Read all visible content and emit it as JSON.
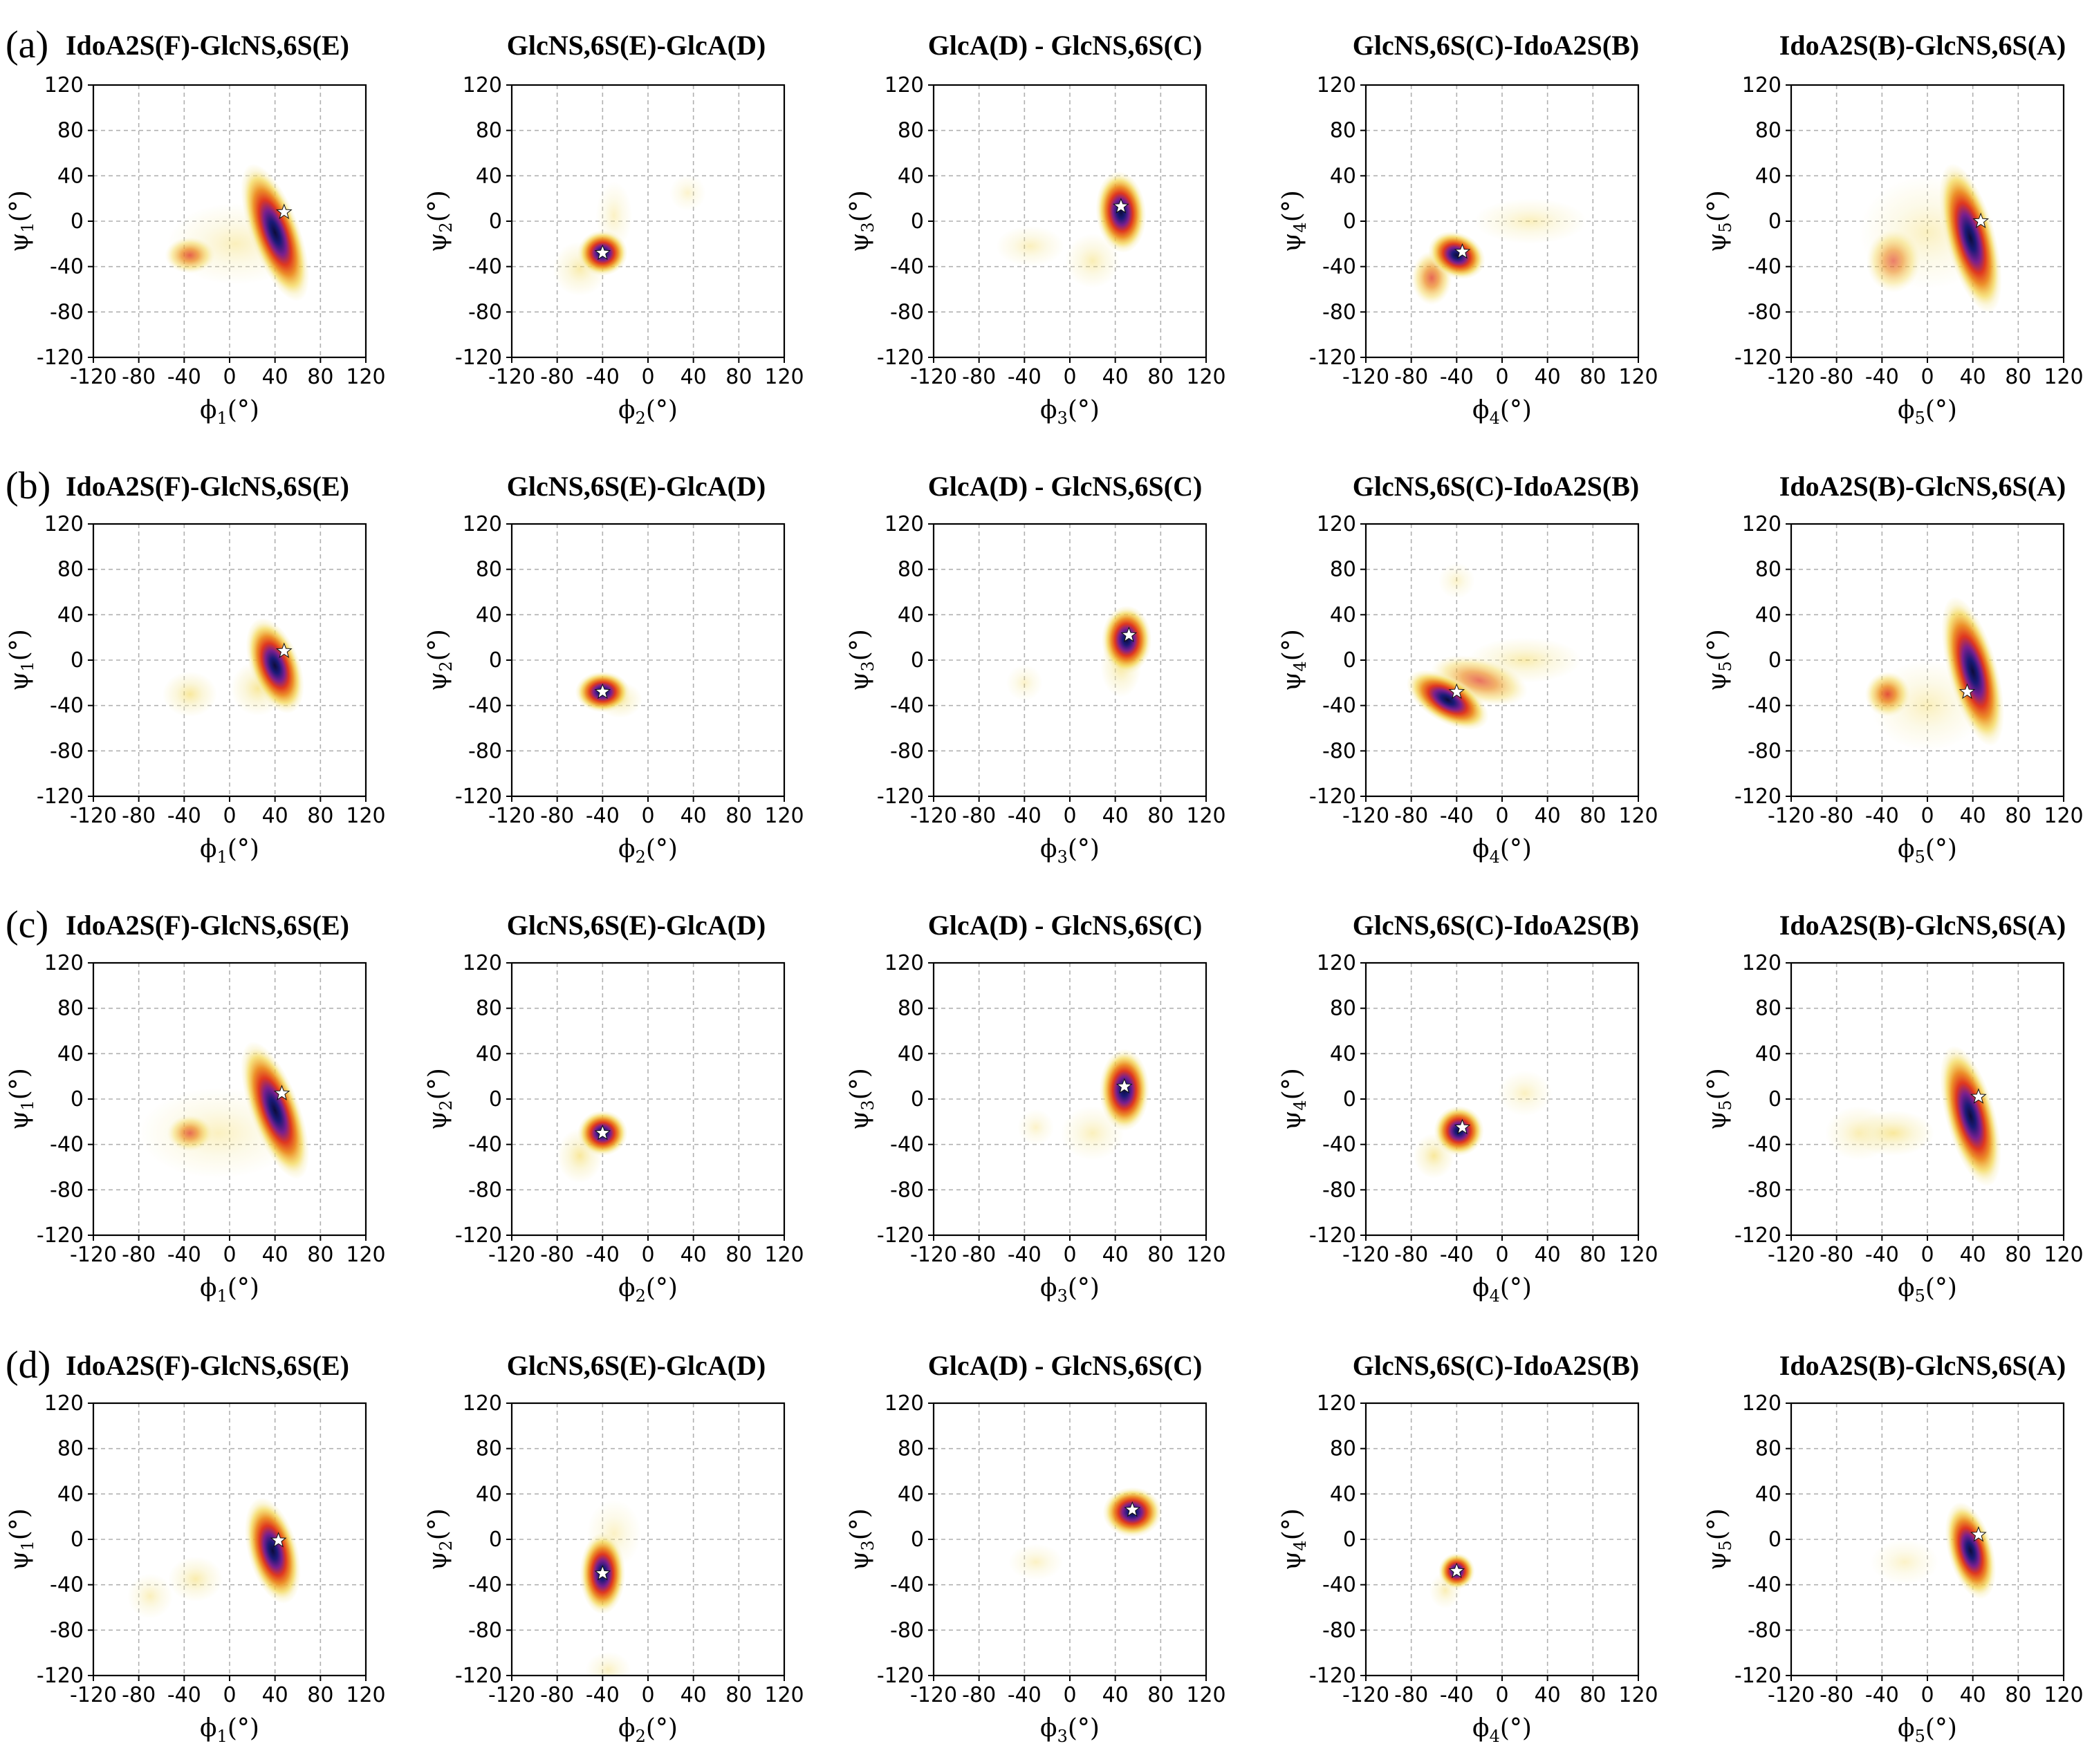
{
  "panels": [
    {
      "label": "(a)",
      "row": 0
    },
    {
      "label": "(b)",
      "row": 1
    },
    {
      "label": "(c)",
      "row": 2
    },
    {
      "label": "(d)",
      "row": 3
    }
  ],
  "titles": [
    "IdoA2S(F)-GlcNS,6S(E)",
    "GlcNS,6S(E)-GlcA(D)",
    "GlcA(D) - GlcNS,6S(C)",
    "GlcNS,6S(C)-IdoA2S(B)",
    "IdoA2S(B)-GlcNS,6S(A)"
  ],
  "axis_ticks": [
    "-120",
    "-80",
    "-40",
    "0",
    "40",
    "80",
    "120"
  ],
  "axis_tick_values": [
    -120,
    -80,
    -40,
    0,
    40,
    80,
    120
  ],
  "xlabel_prefix": "ϕ",
  "ylabel_prefix": "ψ",
  "label_unit": "(°)",
  "colors": {
    "pale": "#f6ecb0",
    "yellow": "#f3d54a",
    "orange": "#ec8a1e",
    "red": "#e0381f",
    "purple": "#7a1f8e",
    "navy": "#1a1a78",
    "core": "#0c0c3a",
    "grid": "#b0b0b0"
  },
  "chart_data": [
    {
      "type": "heatmap",
      "panel": "(a)",
      "title": "IdoA2S(F)-GlcNS,6S(E)",
      "xlabel": "ϕ1(°)",
      "ylabel": "ψ1(°)",
      "xlim": [
        -120,
        120
      ],
      "ylim": [
        -120,
        120
      ],
      "minimum": [
        48,
        8
      ],
      "blobs": [
        {
          "x": 40,
          "y": -10,
          "sx": 11,
          "sy": 32,
          "rot": 20,
          "w": 1.0
        },
        {
          "x": -35,
          "y": -30,
          "sx": 11,
          "sy": 8,
          "rot": 0,
          "w": 0.55
        },
        {
          "x": 5,
          "y": -20,
          "sx": 30,
          "sy": 18,
          "rot": 0,
          "w": 0.08
        }
      ]
    },
    {
      "type": "heatmap",
      "panel": "(a)",
      "title": "GlcNS,6S(E)-GlcA(D)",
      "xlabel": "ϕ2(°)",
      "ylabel": "ψ2(°)",
      "xlim": [
        -120,
        120
      ],
      "ylim": [
        -120,
        120
      ],
      "minimum": [
        -40,
        -28
      ],
      "blobs": [
        {
          "x": -40,
          "y": -28,
          "sx": 11,
          "sy": 10,
          "rot": 0,
          "w": 1.0
        },
        {
          "x": -60,
          "y": -42,
          "sx": 12,
          "sy": 12,
          "rot": 0,
          "w": 0.12
        },
        {
          "x": -30,
          "y": 5,
          "sx": 8,
          "sy": 15,
          "rot": 0,
          "w": 0.06
        },
        {
          "x": 35,
          "y": 25,
          "sx": 8,
          "sy": 8,
          "rot": 0,
          "w": 0.04
        }
      ]
    },
    {
      "type": "heatmap",
      "panel": "(a)",
      "title": "GlcA(D) - GlcNS,6S(C)",
      "xlabel": "ϕ3(°)",
      "ylabel": "ψ3(°)",
      "xlim": [
        -120,
        120
      ],
      "ylim": [
        -120,
        120
      ],
      "minimum": [
        45,
        13
      ],
      "blobs": [
        {
          "x": 45,
          "y": 8,
          "sx": 11,
          "sy": 18,
          "rot": 5,
          "w": 1.0
        },
        {
          "x": 20,
          "y": -35,
          "sx": 12,
          "sy": 12,
          "rot": 0,
          "w": 0.1
        },
        {
          "x": -35,
          "y": -22,
          "sx": 15,
          "sy": 9,
          "rot": 0,
          "w": 0.08
        }
      ]
    },
    {
      "type": "heatmap",
      "panel": "(a)",
      "title": "GlcNS,6S(C)-IdoA2S(B)",
      "xlabel": "ϕ4(°)",
      "ylabel": "ψ4(°)",
      "xlim": [
        -120,
        120
      ],
      "ylim": [
        -120,
        120
      ],
      "minimum": [
        -35,
        -27
      ],
      "blobs": [
        {
          "x": -40,
          "y": -30,
          "sx": 13,
          "sy": 10,
          "rot": -25,
          "w": 1.0
        },
        {
          "x": -62,
          "y": -50,
          "sx": 9,
          "sy": 12,
          "rot": 0,
          "w": 0.5
        },
        {
          "x": 25,
          "y": 0,
          "sx": 25,
          "sy": 10,
          "rot": 0,
          "w": 0.08
        }
      ]
    },
    {
      "type": "heatmap",
      "panel": "(a)",
      "title": "IdoA2S(B)-GlcNS,6S(A)",
      "xlabel": "ϕ5(°)",
      "ylabel": "ψ5(°)",
      "xlim": [
        -120,
        120
      ],
      "ylim": [
        -120,
        120
      ],
      "minimum": [
        47,
        0
      ],
      "blobs": [
        {
          "x": 38,
          "y": -15,
          "sx": 11,
          "sy": 34,
          "rot": 15,
          "w": 1.0
        },
        {
          "x": -30,
          "y": -35,
          "sx": 12,
          "sy": 14,
          "rot": 0,
          "w": 0.3
        },
        {
          "x": 0,
          "y": -10,
          "sx": 30,
          "sy": 25,
          "rot": 0,
          "w": 0.07
        }
      ]
    },
    {
      "type": "heatmap",
      "panel": "(b)",
      "title": "IdoA2S(F)-GlcNS,6S(E)",
      "xlabel": "ϕ1(°)",
      "ylabel": "ψ1(°)",
      "xlim": [
        -120,
        120
      ],
      "ylim": [
        -120,
        120
      ],
      "minimum": [
        48,
        8
      ],
      "blobs": [
        {
          "x": 40,
          "y": -5,
          "sx": 11,
          "sy": 22,
          "rot": 20,
          "w": 1.0
        },
        {
          "x": -35,
          "y": -30,
          "sx": 12,
          "sy": 10,
          "rot": 0,
          "w": 0.2
        },
        {
          "x": 25,
          "y": -25,
          "sx": 12,
          "sy": 12,
          "rot": 0,
          "w": 0.2
        }
      ]
    },
    {
      "type": "heatmap",
      "panel": "(b)",
      "title": "GlcNS,6S(E)-GlcA(D)",
      "xlabel": "ϕ2(°)",
      "ylabel": "ψ2(°)",
      "xlim": [
        -120,
        120
      ],
      "ylim": [
        -120,
        120
      ],
      "minimum": [
        -40,
        -28
      ],
      "blobs": [
        {
          "x": -40,
          "y": -28,
          "sx": 12,
          "sy": 9,
          "rot": 0,
          "w": 1.0
        },
        {
          "x": -25,
          "y": -35,
          "sx": 10,
          "sy": 8,
          "rot": 0,
          "w": 0.15
        }
      ]
    },
    {
      "type": "heatmap",
      "panel": "(b)",
      "title": "GlcA(D) - GlcNS,6S(C)",
      "xlabel": "ϕ3(°)",
      "ylabel": "ψ3(°)",
      "xlim": [
        -120,
        120
      ],
      "ylim": [
        -120,
        120
      ],
      "minimum": [
        52,
        22
      ],
      "blobs": [
        {
          "x": 50,
          "y": 18,
          "sx": 11,
          "sy": 15,
          "rot": 0,
          "w": 1.0
        },
        {
          "x": 45,
          "y": -5,
          "sx": 9,
          "sy": 14,
          "rot": 0,
          "w": 0.25
        },
        {
          "x": -40,
          "y": -20,
          "sx": 8,
          "sy": 8,
          "rot": 0,
          "w": 0.05
        }
      ]
    },
    {
      "type": "heatmap",
      "panel": "(b)",
      "title": "GlcNS,6S(C)-IdoA2S(B)",
      "xlabel": "ϕ4(°)",
      "ylabel": "ψ4(°)",
      "xlim": [
        -120,
        120
      ],
      "ylim": [
        -120,
        120
      ],
      "minimum": [
        -40,
        -28
      ],
      "blobs": [
        {
          "x": -48,
          "y": -35,
          "sx": 20,
          "sy": 10,
          "rot": -30,
          "w": 1.0
        },
        {
          "x": -20,
          "y": -18,
          "sx": 22,
          "sy": 10,
          "rot": -15,
          "w": 0.4
        },
        {
          "x": 20,
          "y": 0,
          "sx": 25,
          "sy": 10,
          "rot": 0,
          "w": 0.12
        },
        {
          "x": -40,
          "y": 70,
          "sx": 8,
          "sy": 8,
          "rot": 0,
          "w": 0.05
        }
      ]
    },
    {
      "type": "heatmap",
      "panel": "(b)",
      "title": "IdoA2S(B)-GlcNS,6S(A)",
      "xlabel": "ϕ5(°)",
      "ylabel": "ψ5(°)",
      "xlim": [
        -120,
        120
      ],
      "ylim": [
        -120,
        120
      ],
      "minimum": [
        35,
        -28
      ],
      "blobs": [
        {
          "x": 40,
          "y": -10,
          "sx": 11,
          "sy": 34,
          "rot": 15,
          "w": 1.0
        },
        {
          "x": -35,
          "y": -30,
          "sx": 10,
          "sy": 10,
          "rot": 0,
          "w": 0.7
        },
        {
          "x": 0,
          "y": -40,
          "sx": 25,
          "sy": 20,
          "rot": 0,
          "w": 0.08
        }
      ]
    },
    {
      "type": "heatmap",
      "panel": "(c)",
      "title": "IdoA2S(F)-GlcNS,6S(E)",
      "xlabel": "ϕ1(°)",
      "ylabel": "ψ1(°)",
      "xlim": [
        -120,
        120
      ],
      "ylim": [
        -120,
        120
      ],
      "minimum": [
        46,
        5
      ],
      "blobs": [
        {
          "x": 40,
          "y": -10,
          "sx": 11,
          "sy": 32,
          "rot": 20,
          "w": 1.0
        },
        {
          "x": -35,
          "y": -30,
          "sx": 10,
          "sy": 8,
          "rot": 0,
          "w": 0.45
        },
        {
          "x": -10,
          "y": -30,
          "sx": 35,
          "sy": 20,
          "rot": 0,
          "w": 0.07
        }
      ]
    },
    {
      "type": "heatmap",
      "panel": "(c)",
      "title": "GlcNS,6S(E)-GlcA(D)",
      "xlabel": "ϕ2(°)",
      "ylabel": "ψ2(°)",
      "xlim": [
        -120,
        120
      ],
      "ylim": [
        -120,
        120
      ],
      "minimum": [
        -40,
        -30
      ],
      "blobs": [
        {
          "x": -40,
          "y": -30,
          "sx": 11,
          "sy": 10,
          "rot": 0,
          "w": 1.0
        },
        {
          "x": -60,
          "y": -50,
          "sx": 10,
          "sy": 12,
          "rot": 0,
          "w": 0.25
        }
      ]
    },
    {
      "type": "heatmap",
      "panel": "(c)",
      "title": "GlcA(D) - GlcNS,6S(C)",
      "xlabel": "ϕ3(°)",
      "ylabel": "ψ3(°)",
      "xlim": [
        -120,
        120
      ],
      "ylim": [
        -120,
        120
      ],
      "minimum": [
        48,
        11
      ],
      "blobs": [
        {
          "x": 48,
          "y": 8,
          "sx": 11,
          "sy": 18,
          "rot": 0,
          "w": 1.0
        },
        {
          "x": 20,
          "y": -30,
          "sx": 14,
          "sy": 12,
          "rot": 0,
          "w": 0.08
        },
        {
          "x": -30,
          "y": -25,
          "sx": 8,
          "sy": 8,
          "rot": 0,
          "w": 0.05
        }
      ]
    },
    {
      "type": "heatmap",
      "panel": "(c)",
      "title": "GlcNS,6S(C)-IdoA2S(B)",
      "xlabel": "ϕ4(°)",
      "ylabel": "ψ4(°)",
      "xlim": [
        -120,
        120
      ],
      "ylim": [
        -120,
        120
      ],
      "minimum": [
        -35,
        -25
      ],
      "blobs": [
        {
          "x": -38,
          "y": -28,
          "sx": 11,
          "sy": 11,
          "rot": -20,
          "w": 1.0
        },
        {
          "x": -60,
          "y": -50,
          "sx": 9,
          "sy": 10,
          "rot": 0,
          "w": 0.25
        },
        {
          "x": 20,
          "y": 5,
          "sx": 12,
          "sy": 10,
          "rot": 0,
          "w": 0.07
        }
      ]
    },
    {
      "type": "heatmap",
      "panel": "(c)",
      "title": "IdoA2S(B)-GlcNS,6S(A)",
      "xlabel": "ϕ5(°)",
      "ylabel": "ψ5(°)",
      "xlim": [
        -120,
        120
      ],
      "ylim": [
        -120,
        120
      ],
      "minimum": [
        45,
        2
      ],
      "blobs": [
        {
          "x": 38,
          "y": -15,
          "sx": 11,
          "sy": 32,
          "rot": 15,
          "w": 1.0
        },
        {
          "x": -30,
          "y": -30,
          "sx": 18,
          "sy": 10,
          "rot": 0,
          "w": 0.2
        },
        {
          "x": -60,
          "y": -30,
          "sx": 15,
          "sy": 12,
          "rot": 0,
          "w": 0.1
        }
      ]
    },
    {
      "type": "heatmap",
      "panel": "(d)",
      "title": "IdoA2S(F)-GlcNS,6S(E)",
      "xlabel": "ϕ1(°)",
      "ylabel": "ψ1(°)",
      "xlim": [
        -120,
        120
      ],
      "ylim": [
        -120,
        120
      ],
      "minimum": [
        43,
        -1
      ],
      "blobs": [
        {
          "x": 38,
          "y": -10,
          "sx": 11,
          "sy": 24,
          "rot": 15,
          "w": 1.0
        },
        {
          "x": -30,
          "y": -35,
          "sx": 12,
          "sy": 10,
          "rot": 0,
          "w": 0.12
        },
        {
          "x": -70,
          "y": -50,
          "sx": 10,
          "sy": 10,
          "rot": 0,
          "w": 0.08
        }
      ]
    },
    {
      "type": "heatmap",
      "panel": "(d)",
      "title": "GlcNS,6S(E)-GlcA(D)",
      "xlabel": "ϕ2(°)",
      "ylabel": "ψ2(°)",
      "xlim": [
        -120,
        120
      ],
      "ylim": [
        -120,
        120
      ],
      "minimum": [
        -40,
        -30
      ],
      "blobs": [
        {
          "x": -40,
          "y": -30,
          "sx": 10,
          "sy": 18,
          "rot": 0,
          "w": 1.0
        },
        {
          "x": -35,
          "y": -115,
          "sx": 10,
          "sy": 8,
          "rot": 0,
          "w": 0.07
        },
        {
          "x": -30,
          "y": 5,
          "sx": 12,
          "sy": 15,
          "rot": 0,
          "w": 0.06
        }
      ]
    },
    {
      "type": "heatmap",
      "panel": "(d)",
      "title": "GlcA(D) - GlcNS,6S(C)",
      "xlabel": "ϕ3(°)",
      "ylabel": "ψ3(°)",
      "xlim": [
        -120,
        120
      ],
      "ylim": [
        -120,
        120
      ],
      "minimum": [
        55,
        26
      ],
      "blobs": [
        {
          "x": 55,
          "y": 24,
          "sx": 13,
          "sy": 11,
          "rot": 0,
          "w": 1.0
        },
        {
          "x": -30,
          "y": -20,
          "sx": 12,
          "sy": 8,
          "rot": 0,
          "w": 0.06
        }
      ]
    },
    {
      "type": "heatmap",
      "panel": "(d)",
      "title": "GlcNS,6S(C)-IdoA2S(B)",
      "xlabel": "ϕ4(°)",
      "ylabel": "ψ4(°)",
      "xlim": [
        -120,
        120
      ],
      "ylim": [
        -120,
        120
      ],
      "minimum": [
        -40,
        -28
      ],
      "blobs": [
        {
          "x": -40,
          "y": -28,
          "sx": 8,
          "sy": 8,
          "rot": 0,
          "w": 1.0
        },
        {
          "x": -50,
          "y": -45,
          "sx": 7,
          "sy": 8,
          "rot": 0,
          "w": 0.1
        }
      ]
    },
    {
      "type": "heatmap",
      "panel": "(d)",
      "title": "IdoA2S(B)-GlcNS,6S(A)",
      "xlabel": "ϕ5(°)",
      "ylabel": "ψ5(°)",
      "xlim": [
        -120,
        120
      ],
      "ylim": [
        -120,
        120
      ],
      "minimum": [
        45,
        4
      ],
      "blobs": [
        {
          "x": 38,
          "y": -10,
          "sx": 10,
          "sy": 22,
          "rot": 15,
          "w": 1.0
        },
        {
          "x": -20,
          "y": -20,
          "sx": 15,
          "sy": 10,
          "rot": 0,
          "w": 0.05
        }
      ]
    }
  ]
}
